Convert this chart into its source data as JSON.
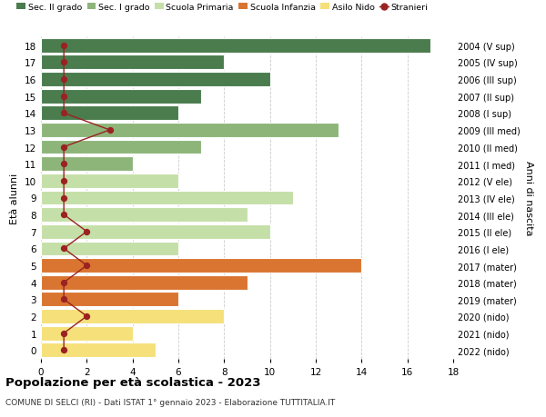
{
  "ages": [
    18,
    17,
    16,
    15,
    14,
    13,
    12,
    11,
    10,
    9,
    8,
    7,
    6,
    5,
    4,
    3,
    2,
    1,
    0
  ],
  "years": [
    "2004 (V sup)",
    "2005 (IV sup)",
    "2006 (III sup)",
    "2007 (II sup)",
    "2008 (I sup)",
    "2009 (III med)",
    "2010 (II med)",
    "2011 (I med)",
    "2012 (V ele)",
    "2013 (IV ele)",
    "2014 (III ele)",
    "2015 (II ele)",
    "2016 (I ele)",
    "2017 (mater)",
    "2018 (mater)",
    "2019 (mater)",
    "2020 (nido)",
    "2021 (nido)",
    "2022 (nido)"
  ],
  "bar_values": [
    17,
    8,
    10,
    7,
    6,
    13,
    7,
    4,
    6,
    11,
    9,
    10,
    6,
    14,
    9,
    6,
    8,
    4,
    5
  ],
  "bar_colors": [
    "#4a7c4e",
    "#4a7c4e",
    "#4a7c4e",
    "#4a7c4e",
    "#4a7c4e",
    "#8db57a",
    "#8db57a",
    "#8db57a",
    "#c5dfa8",
    "#c5dfa8",
    "#c5dfa8",
    "#c5dfa8",
    "#c5dfa8",
    "#d97530",
    "#d97530",
    "#d97530",
    "#f5e07a",
    "#f5e07a",
    "#f5e07a"
  ],
  "stranieri_values": [
    1,
    1,
    1,
    1,
    1,
    3,
    1,
    1,
    1,
    1,
    1,
    2,
    1,
    2,
    1,
    1,
    2,
    1,
    1
  ],
  "stranieri_color": "#9b2222",
  "legend_labels": [
    "Sec. II grado",
    "Sec. I grado",
    "Scuola Primaria",
    "Scuola Infanzia",
    "Asilo Nido",
    "Stranieri"
  ],
  "legend_colors": [
    "#4a7c4e",
    "#8db57a",
    "#c5dfa8",
    "#d97530",
    "#f5e07a",
    "#9b2222"
  ],
  "ylabel": "Età alunni",
  "ylabel_right": "Anni di nascita",
  "title": "Popolazione per età scolastica - 2023",
  "subtitle": "COMUNE DI SELCI (RI) - Dati ISTAT 1° gennaio 2023 - Elaborazione TUTTITALIA.IT",
  "xlim": [
    0,
    18
  ],
  "background_color": "#ffffff",
  "grid_color": "#cccccc"
}
